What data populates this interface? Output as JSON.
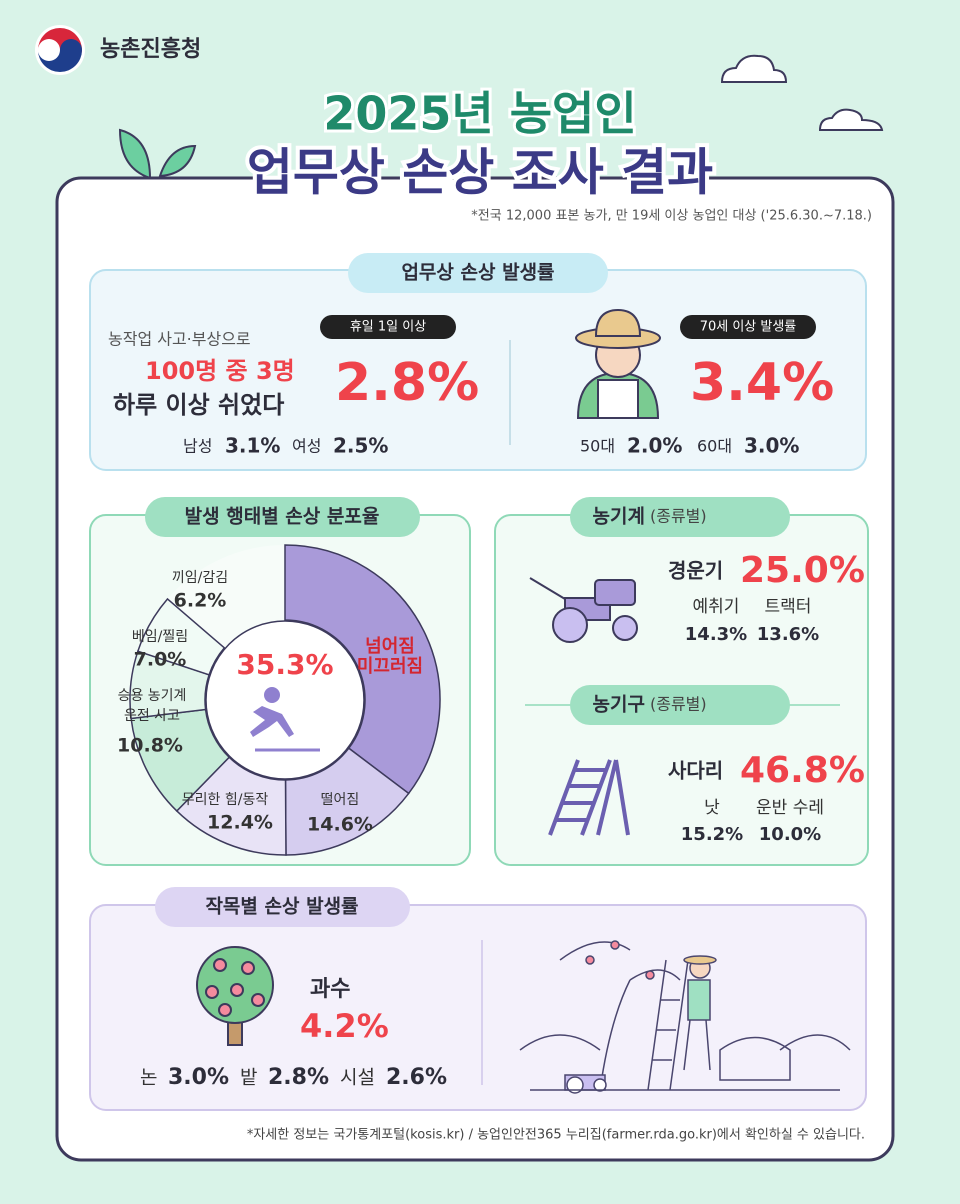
{
  "header": {
    "org": "농촌진흥청",
    "title_line1": "2025년 농업인",
    "title_line2": "업무상 손상 조사 결과",
    "note": "*전국 12,000 표본 농가, 만 19세 이상 농업인 대상 ('25.6.30.~7.18.)"
  },
  "injury_rate": {
    "title": "업무상 손상 발생률",
    "lead": "농작업 사고·부상으로",
    "highlight": "100명 중 3명",
    "conclusion": "하루 이상 쉬었다",
    "badge": "휴일 1일 이상",
    "rate": "2.8%",
    "male_label": "남성",
    "male_rate": "3.1%",
    "female_label": "여성",
    "female_rate": "2.5%",
    "senior_badge": "70세 이상 발생률",
    "senior_rate": "3.4%",
    "age50_label": "50대",
    "age50_rate": "2.0%",
    "age60_label": "60대",
    "age60_rate": "3.0%"
  },
  "injury_distribution": {
    "title": "발생 행태별 손상 분포율",
    "segments": [
      {
        "label": [
          "넘어짐",
          "미끄러짐"
        ],
        "value": 35.3,
        "value_label": "35.3%"
      },
      {
        "label": [
          "떨어짐"
        ],
        "value": 14.6,
        "value_label": "14.6%"
      },
      {
        "label": [
          "무리한 힘/동작"
        ],
        "value": 12.4,
        "value_label": "12.4%"
      },
      {
        "label": [
          "승용 농기계",
          "운전 사고"
        ],
        "value": 10.8,
        "value_label": "10.8%"
      },
      {
        "label": [
          "베임/찔림"
        ],
        "value": 7.0,
        "value_label": "7.0%"
      },
      {
        "label": [
          "끼임/감김"
        ],
        "value": 6.2,
        "value_label": "6.2%"
      }
    ]
  },
  "machinery": {
    "title": "농기계",
    "title_note": "(종류별)",
    "top_label": "경운기",
    "top_rate": "25.0%",
    "items": [
      {
        "label": "예취기",
        "rate": "14.3%"
      },
      {
        "label": "트랙터",
        "rate": "13.6%"
      }
    ]
  },
  "tools": {
    "title": "농기구",
    "title_note": "(종류별)",
    "top_label": "사다리",
    "top_rate": "46.8%",
    "items": [
      {
        "label": "낫",
        "rate": "15.2%"
      },
      {
        "label": "운반 수레",
        "rate": "10.0%"
      }
    ]
  },
  "crops": {
    "title": "작목별 손상 발생률",
    "top_label": "과수",
    "top_rate": "4.2%",
    "items": [
      {
        "label": "논",
        "rate": "3.0%"
      },
      {
        "label": "밭",
        "rate": "2.8%"
      },
      {
        "label": "시설",
        "rate": "2.6%"
      }
    ]
  },
  "footer": {
    "note": "*자세한 정보는 국가통계포털(kosis.kr) / 농업인안전365 누리집(farmer.rda.go.kr)에서 확인하실 수 있습니다."
  }
}
